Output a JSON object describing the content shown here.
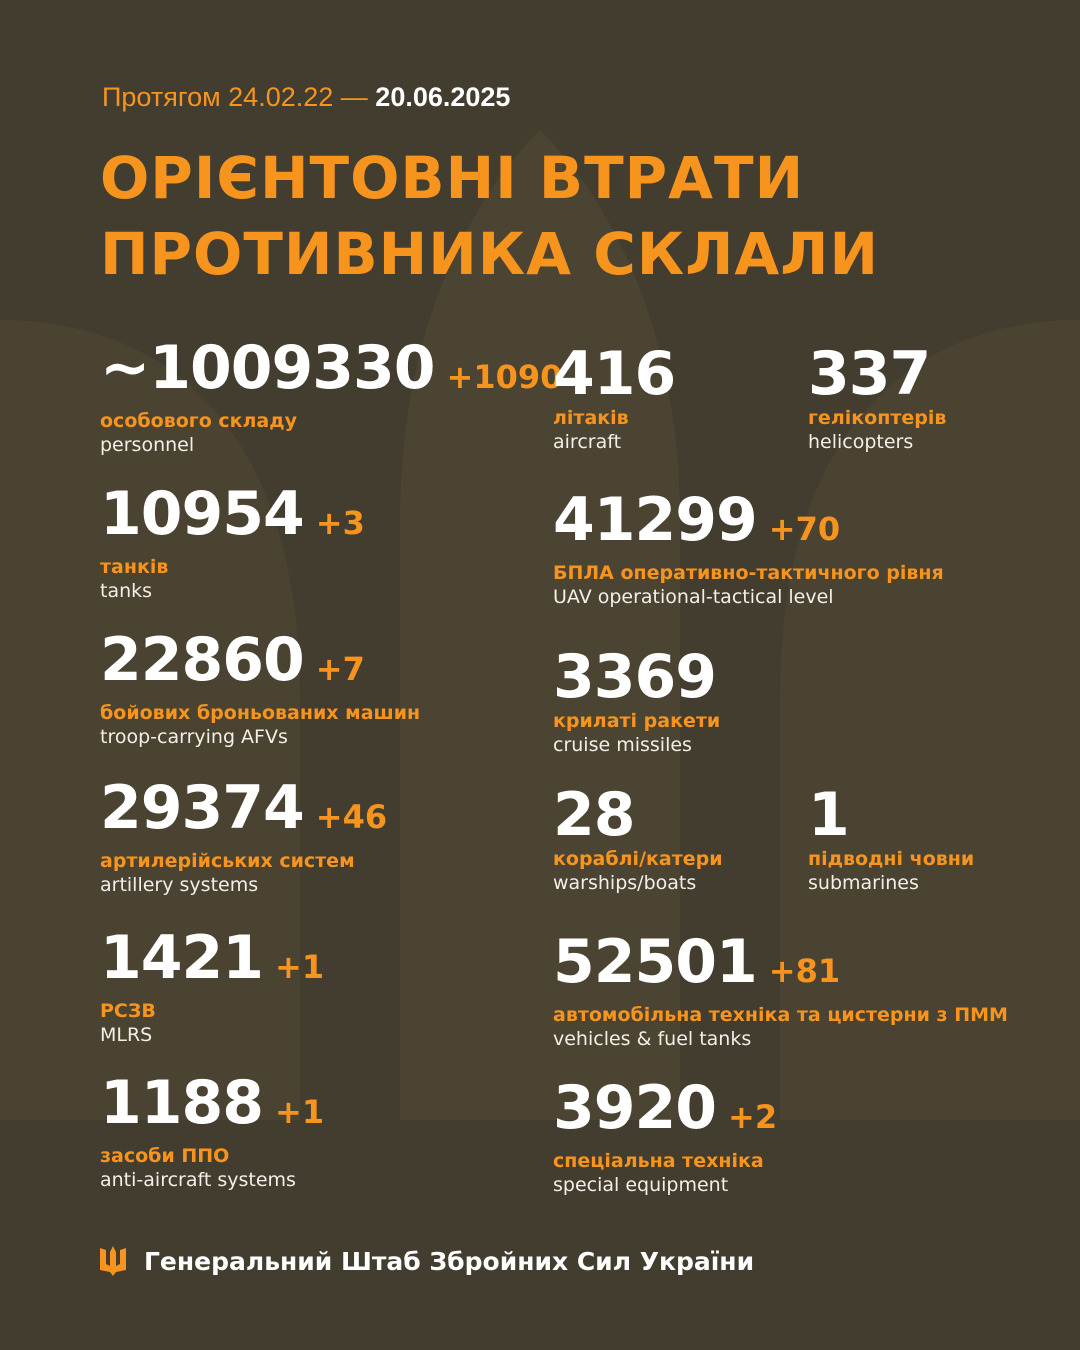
{
  "header": {
    "period_prefix": "Протягом 24.02.22 —",
    "period_end": "20.06.2025",
    "title_line1": "ОРІЄНТОВНІ ВТРАТИ",
    "title_line2": "ПРОТИВНИКА СКЛАЛИ"
  },
  "stats": [
    {
      "value": "~1009330",
      "delta": "+1090",
      "ua": "особового складу",
      "en": "personnel"
    },
    {
      "value": "10954",
      "delta": "+3",
      "ua": "танків",
      "en": "tanks"
    },
    {
      "value": "22860",
      "delta": "+7",
      "ua": "бойових броньованих машин",
      "en": "troop-carrying AFVs"
    },
    {
      "value": "29374",
      "delta": "+46",
      "ua": "артилерійських систем",
      "en": "artillery systems"
    },
    {
      "value": "1421",
      "delta": "+1",
      "ua": "РСЗВ",
      "en": "MLRS"
    },
    {
      "value": "1188",
      "delta": "+1",
      "ua": "засоби ППО",
      "en": "anti-aircraft systems"
    },
    {
      "value": "416",
      "delta": "",
      "ua": "літаків",
      "en": "aircraft"
    },
    {
      "value": "337",
      "delta": "",
      "ua": "гелікоптерів",
      "en": "helicopters"
    },
    {
      "value": "41299",
      "delta": "+70",
      "ua": "БПЛА оперативно-тактичного рівня",
      "en": "UAV operational-tactical level"
    },
    {
      "value": "3369",
      "delta": "",
      "ua": "крилаті ракети",
      "en": "cruise missiles"
    },
    {
      "value": "28",
      "delta": "",
      "ua": "кораблі/катери",
      "en": "warships/boats"
    },
    {
      "value": "1",
      "delta": "",
      "ua": "підводні човни",
      "en": "submarines"
    },
    {
      "value": "52501",
      "delta": "+81",
      "ua": "автомобільна техніка та цистерни з ПММ",
      "en": "vehicles & fuel tanks"
    },
    {
      "value": "3920",
      "delta": "+2",
      "ua": "спеціальна техніка",
      "en": "special equipment"
    }
  ],
  "footer": {
    "org": "Генеральний Штаб Збройних Сил України",
    "icon": "trident-icon"
  },
  "colors": {
    "background": "#433d2f",
    "accent": "#f7941d",
    "text": "#ffffff"
  }
}
